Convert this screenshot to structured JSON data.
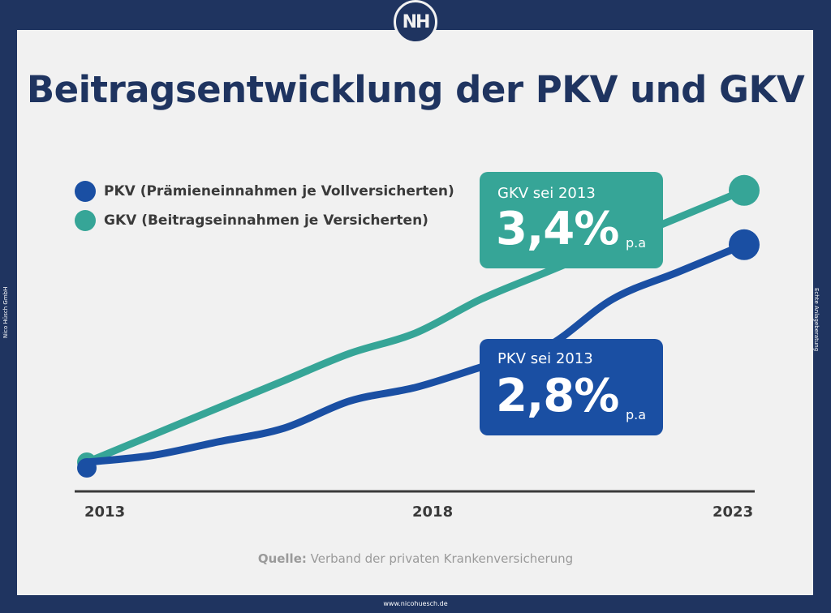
{
  "logo": {
    "text": "NH"
  },
  "title": "Beitragsentwicklung der PKV und GKV",
  "legend": [
    {
      "label": "PKV (Prämieneinnahmen je Vollversicherten)",
      "color": "#1a4fa3"
    },
    {
      "label": "GKV (Beitragseinnahmen je Versicherten)",
      "color": "#36a597"
    }
  ],
  "side_texts": {
    "left": "Nico Hüsch GmbH",
    "right": "Echte Anlageberatung"
  },
  "callouts": {
    "gkv": {
      "label": "GKV sei 2013",
      "value": "3,4%",
      "unit": "p.a",
      "color": "#36a597"
    },
    "pkv": {
      "label": "PKV sei 2013",
      "value": "2,8%",
      "unit": "p.a",
      "color": "#1a4fa3"
    }
  },
  "source": {
    "prefix": "Quelle:",
    "text": "Verband der privaten Krankenversicherung"
  },
  "footer": "www.nicohuesch.de",
  "chart_data": {
    "type": "line",
    "x": [
      2013,
      2014,
      2015,
      2016,
      2017,
      2018,
      2019,
      2020,
      2021,
      2022,
      2023
    ],
    "xticks": [
      "2013",
      "2018",
      "2023"
    ],
    "series": [
      {
        "name": "GKV (Beitragseinnahmen je Versicherten)",
        "color": "#36a597",
        "values": [
          100,
          104,
          108,
          112,
          116,
          119,
          124,
          128,
          132,
          136,
          140
        ]
      },
      {
        "name": "PKV (Prämieneinnahmen je Vollversicherten)",
        "color": "#1a4fa3",
        "values": [
          100,
          101,
          103,
          105,
          109,
          111,
          114,
          117,
          124,
          128,
          132
        ]
      }
    ],
    "ylim": [
      96,
      142
    ],
    "grid": false,
    "legend": "top-left"
  }
}
